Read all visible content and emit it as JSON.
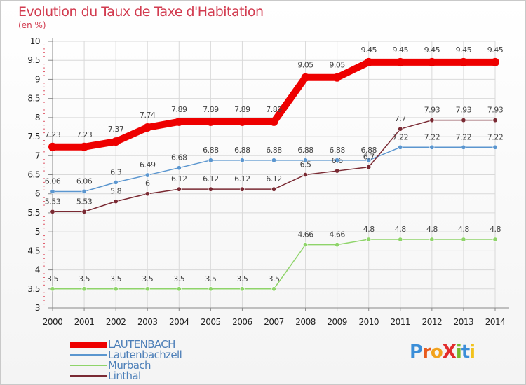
{
  "header": {
    "title": "Evolution du Taux de Taxe d'Habitation",
    "unit": "(en %)"
  },
  "logo": {
    "text": "Proxiti",
    "letters": [
      {
        "ch": "P",
        "color": "#3b8ed8"
      },
      {
        "ch": "r",
        "color": "#e85b1e"
      },
      {
        "ch": "o",
        "color": "#f2a21c"
      },
      {
        "ch": "X",
        "color": "#e22d2d"
      },
      {
        "ch": "i",
        "color": "#76b82a"
      },
      {
        "ch": "t",
        "color": "#3b8ed8"
      },
      {
        "ch": "i",
        "color": "#f2c21c"
      }
    ]
  },
  "chart_data": {
    "type": "line",
    "title": "Evolution du Taux de Taxe d'Habitation",
    "ylabel": "(en %)",
    "xlabel": "",
    "ylim": [
      3,
      10
    ],
    "yticks": [
      "3",
      "3.5",
      "4",
      "4.5",
      "5",
      "5.5",
      "6",
      "6.5",
      "7",
      "7.5",
      "8",
      "8.5",
      "9",
      "9.5",
      "10"
    ],
    "categories": [
      "2000",
      "2001",
      "2002",
      "2003",
      "2004",
      "2005",
      "2006",
      "2007",
      "2008",
      "2009",
      "2010",
      "2011",
      "2012",
      "2013",
      "2014"
    ],
    "grid": true,
    "legend_position": "bottom-left",
    "series": [
      {
        "name": "LAUTENBACH",
        "color": "#ee0000",
        "values": [
          7.23,
          7.23,
          7.37,
          7.74,
          7.89,
          7.89,
          7.89,
          7.89,
          9.05,
          9.05,
          9.45,
          9.45,
          9.45,
          9.45,
          9.45
        ],
        "labels": [
          "7.23",
          "7.23",
          "7.37",
          "7.74",
          "7.89",
          "7.89",
          "7.89",
          "7.89",
          "9.05",
          "9.05",
          "9.45",
          "9.45",
          "9.45",
          "9.45",
          "9.45"
        ]
      },
      {
        "name": "Lautenbachzell",
        "color": "#5b96cf",
        "values": [
          6.06,
          6.06,
          6.3,
          6.49,
          6.68,
          6.88,
          6.88,
          6.88,
          6.88,
          6.88,
          6.88,
          7.22,
          7.22,
          7.22,
          7.22
        ],
        "labels": [
          "6.06",
          "6.06",
          "6.3",
          "6.49",
          "6.68",
          "6.88",
          "6.88",
          "6.88",
          "6.88",
          "6.88",
          "6.88",
          "7.22",
          "7.22",
          "7.22",
          "7.22"
        ]
      },
      {
        "name": "Murbach",
        "color": "#8fd46a",
        "values": [
          3.5,
          3.5,
          3.5,
          3.5,
          3.5,
          3.5,
          3.5,
          3.5,
          4.66,
          4.66,
          4.8,
          4.8,
          4.8,
          4.8,
          4.8
        ],
        "labels": [
          "3.5",
          "3.5",
          "3.5",
          "3.5",
          "3.5",
          "3.5",
          "3.5",
          "3.5",
          "4.66",
          "4.66",
          "4.8",
          "4.8",
          "4.8",
          "4.8",
          "4.8"
        ]
      },
      {
        "name": "Linthal",
        "color": "#7a2a33",
        "values": [
          5.53,
          5.53,
          5.8,
          6,
          6.12,
          6.12,
          6.12,
          6.12,
          6.5,
          6.6,
          6.7,
          7.7,
          7.93,
          7.93,
          7.93
        ],
        "labels": [
          "5.53",
          "5.53",
          "5.8",
          "6",
          "6.12",
          "6.12",
          "6.12",
          "6.12",
          "6.5",
          "6.6",
          "6.7",
          "7.7",
          "7.93",
          "7.93",
          "7.93"
        ]
      }
    ]
  }
}
